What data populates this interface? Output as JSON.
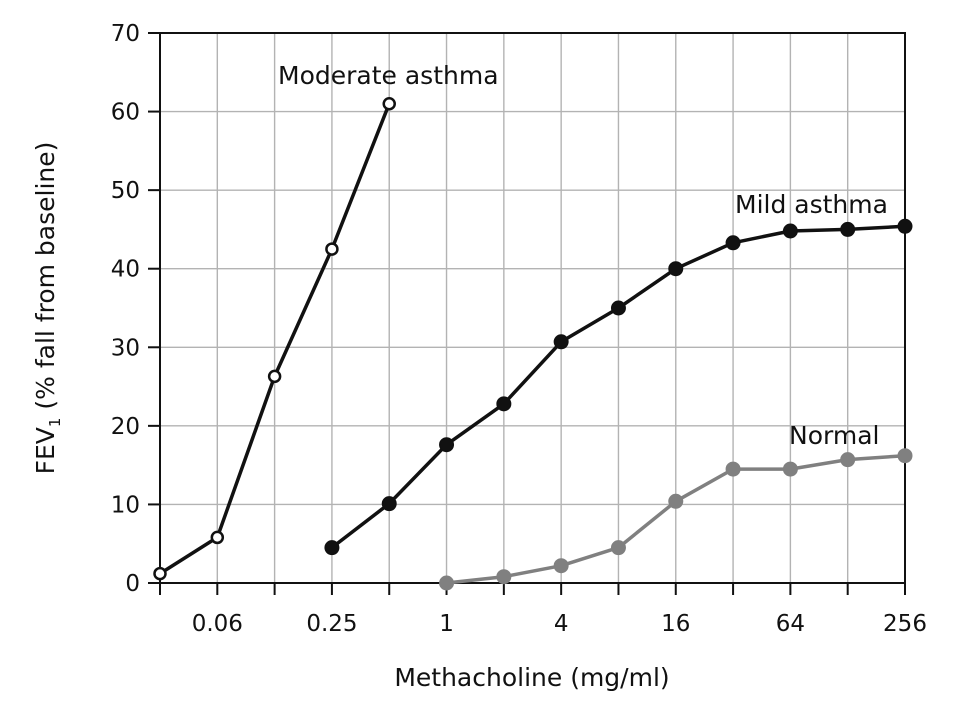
{
  "chart_data": {
    "type": "line",
    "title": "",
    "xlabel": "Methacholine (mg/ml)",
    "ylabel": {
      "prefix": "FEV",
      "subscript": "1",
      "suffix": " (% fall from baseline)"
    },
    "x_scale": "log2",
    "x_ticks": [
      0.0625,
      0.25,
      1,
      4,
      16,
      64,
      256
    ],
    "x_tick_labels": [
      "0.06",
      "0.25",
      "1",
      "4",
      "16",
      "64",
      "256"
    ],
    "x_range": [
      0.03125,
      256
    ],
    "ylim": [
      0,
      70
    ],
    "y_ticks": [
      0,
      10,
      20,
      30,
      40,
      50,
      60,
      70
    ],
    "y_tick_labels": [
      "0",
      "10",
      "20",
      "30",
      "40",
      "50",
      "60",
      "70"
    ],
    "grid": true,
    "series": [
      {
        "name": "Moderate asthma",
        "marker": "open-circle",
        "color": "#111111",
        "x": [
          0.03125,
          0.0625,
          0.125,
          0.25,
          0.5
        ],
        "y": [
          1.2,
          5.8,
          26.3,
          42.5,
          61.0
        ]
      },
      {
        "name": "Mild asthma",
        "marker": "filled-circle",
        "color": "#111111",
        "x": [
          0.25,
          0.5,
          1,
          2,
          4,
          8,
          16,
          32,
          64,
          128,
          256
        ],
        "y": [
          4.5,
          10.1,
          17.6,
          22.8,
          30.7,
          35.0,
          40.0,
          43.3,
          44.8,
          45.0,
          45.4
        ]
      },
      {
        "name": "Normal",
        "marker": "filled-circle",
        "color": "#808080",
        "x": [
          1,
          2,
          4,
          8,
          16,
          32,
          64,
          128,
          256
        ],
        "y": [
          0,
          0.8,
          2.2,
          4.5,
          10.4,
          14.5,
          14.5,
          15.7,
          16.2
        ]
      }
    ]
  }
}
